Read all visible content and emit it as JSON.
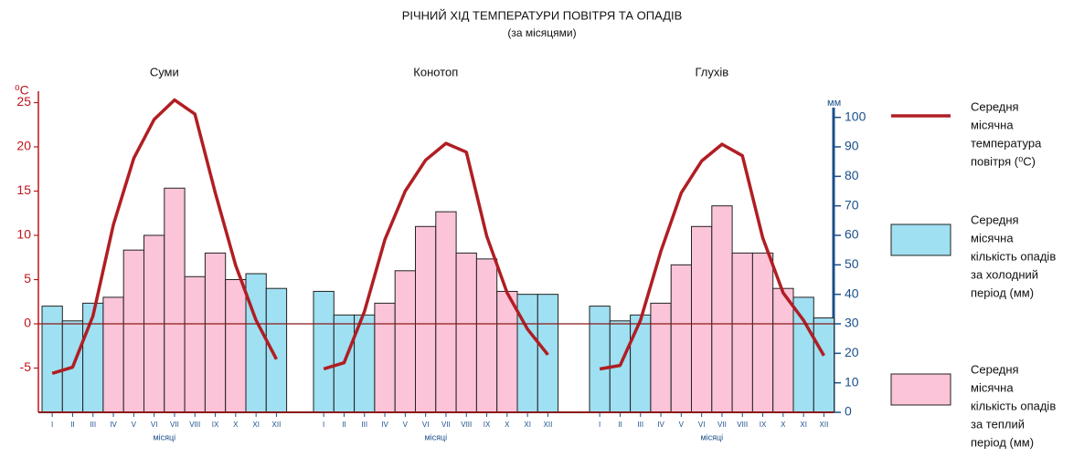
{
  "chart_data": {
    "type": "climate",
    "title": "РІЧНИЙ ХІД ТЕМПЕРАТУРИ ПОВІТРЯ ТА ОПАДІВ",
    "subtitle": "(за місяцями)",
    "ylabel": "⁰С",
    "y2label": "мм",
    "xlabel": "місяці",
    "categories": [
      "I",
      "II",
      "III",
      "IV",
      "V",
      "VI",
      "VII",
      "VIII",
      "IX",
      "X",
      "XI",
      "XII"
    ],
    "ylim": [
      -10,
      25
    ],
    "yticks": [
      -5,
      0,
      5,
      10,
      15,
      20,
      25
    ],
    "y2lim": [
      0,
      105
    ],
    "y2ticks": [
      0,
      10,
      20,
      30,
      40,
      50,
      60,
      70,
      80,
      90,
      100
    ],
    "line_color": "#b01e23",
    "panels": [
      {
        "title": "Суми",
        "temperature": [
          -5.6,
          -4.9,
          0.9,
          11.2,
          18.7,
          23.1,
          25.3,
          23.7,
          14.8,
          6.6,
          0.4,
          -4.0
        ],
        "precipitation": [
          36,
          31,
          37,
          39,
          55,
          60,
          76,
          46,
          54,
          45,
          47,
          42
        ],
        "colors": [
          "#9fe0f2",
          "#9fe0f2",
          "#9fe0f2",
          "#fbc4d8",
          "#fbc4d8",
          "#fbc4d8",
          "#fbc4d8",
          "#fbc4d8",
          "#fbc4d8",
          "#fbc4d8",
          "#9fe0f2",
          "#9fe0f2"
        ]
      },
      {
        "title": "Конотоп",
        "temperature": [
          -5.1,
          -4.4,
          1.4,
          9.5,
          15.0,
          18.5,
          20.4,
          19.4,
          9.9,
          3.5,
          -0.6,
          -3.5
        ],
        "precipitation": [
          41,
          33,
          33,
          37,
          48,
          63,
          68,
          54,
          52,
          41,
          40,
          40
        ],
        "colors": [
          "#9fe0f2",
          "#9fe0f2",
          "#9fe0f2",
          "#fbc4d8",
          "#fbc4d8",
          "#fbc4d8",
          "#fbc4d8",
          "#fbc4d8",
          "#fbc4d8",
          "#fbc4d8",
          "#9fe0f2",
          "#9fe0f2"
        ]
      },
      {
        "title": "Глухів",
        "temperature": [
          -5.1,
          -4.7,
          0.4,
          8.2,
          14.8,
          18.4,
          20.3,
          19.0,
          9.7,
          3.5,
          0.4,
          -3.6
        ],
        "precipitation": [
          36,
          31,
          33,
          37,
          50,
          63,
          70,
          54,
          54,
          42,
          39,
          32
        ],
        "colors": [
          "#9fe0f2",
          "#9fe0f2",
          "#9fe0f2",
          "#fbc4d8",
          "#fbc4d8",
          "#fbc4d8",
          "#fbc4d8",
          "#fbc4d8",
          "#fbc4d8",
          "#fbc4d8",
          "#9fe0f2",
          "#9fe0f2"
        ]
      }
    ],
    "legend": [
      {
        "lines": [
          "Середня",
          "місячна",
          "температура",
          "повітря (⁰С)"
        ],
        "color": "#b01e23"
      },
      {
        "lines": [
          "Середня",
          "місячна",
          "кількість опадів",
          "за холодний",
          "період (мм)"
        ],
        "color": "#9fe0f2"
      },
      {
        "lines": [
          "Середня",
          "місячна",
          "кількість опадів",
          "за теплий",
          "період (мм)"
        ],
        "color": "#fbc4d8"
      }
    ]
  }
}
